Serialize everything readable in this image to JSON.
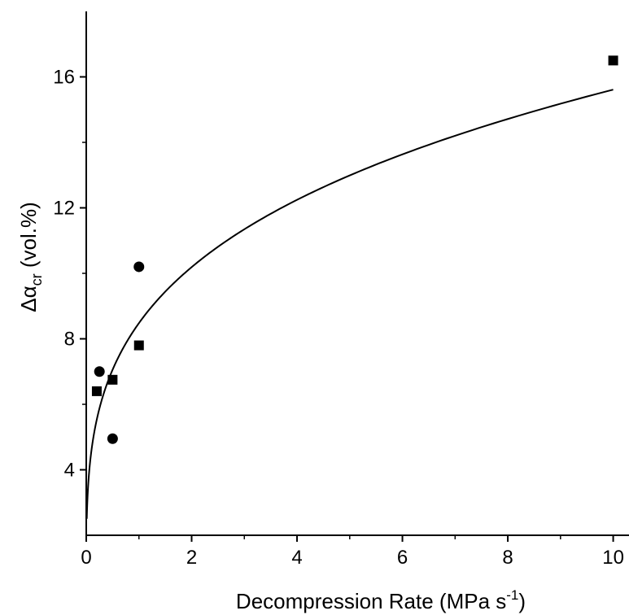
{
  "chart_data": {
    "type": "scatter",
    "xlabel": "Decompression Rate (MPa s",
    "xlabel_sup": "-1",
    "xlabel_close": ")",
    "ylabel_symbol": "Δα",
    "ylabel_sub": "cr",
    "ylabel_unit": " (vol.%)",
    "xlim": [
      0,
      10.3
    ],
    "ylim": [
      2,
      18
    ],
    "xticks": [
      0,
      2,
      4,
      6,
      8,
      10
    ],
    "yticks": [
      4,
      8,
      12,
      16
    ],
    "grid": false,
    "series": [
      {
        "marker": "square",
        "color": "#000000",
        "points": [
          {
            "x": 0.2,
            "y": 6.4
          },
          {
            "x": 0.5,
            "y": 6.75
          },
          {
            "x": 1.0,
            "y": 7.8
          },
          {
            "x": 10.0,
            "y": 16.5
          }
        ]
      },
      {
        "marker": "circle",
        "color": "#000000",
        "points": [
          {
            "x": 0.25,
            "y": 7.0
          },
          {
            "x": 0.5,
            "y": 4.95
          },
          {
            "x": 1.0,
            "y": 10.2
          }
        ]
      }
    ],
    "fit": {
      "type": "power",
      "a": 8.48,
      "b": 0.265,
      "x_range": [
        0.01,
        10.0
      ],
      "color": "#000000"
    }
  }
}
